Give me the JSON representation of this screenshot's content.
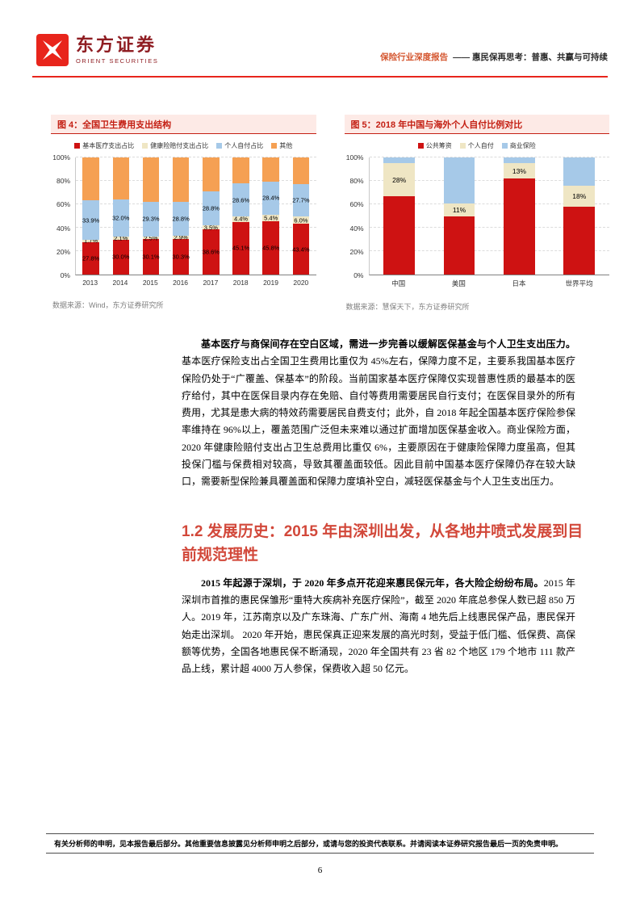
{
  "header": {
    "logo_cn": "东方证券",
    "logo_en": "ORIENT SECURITIES",
    "report_type": "保险行业深度报告",
    "report_title": "—— 惠民保再思考：普惠、共赢与可持续"
  },
  "colors": {
    "brand_red": "#E8251C",
    "figure_title_red": "#C42014",
    "figure_title_bg": "#FDEAE6",
    "section_heading_red": "#D2483A",
    "bar_red": "#CE1212",
    "bar_beige": "#EFE6C4",
    "bar_blue": "#A6C9E8",
    "bar_orange": "#F5A053"
  },
  "chart_data": [
    {
      "type": "bar",
      "subtype": "stacked",
      "title": "图 4：全国卫生费用支出结构",
      "categories": [
        "2013",
        "2014",
        "2015",
        "2016",
        "2017",
        "2018",
        "2019",
        "2020"
      ],
      "y_ticks": [
        "100%",
        "80%",
        "60%",
        "40%",
        "20%",
        "0%"
      ],
      "ylim": [
        0,
        100
      ],
      "grid": "dashed-horizontal",
      "legend_position": "top",
      "bar_width": "55%",
      "series": [
        {
          "name": "基本医疗支出占比",
          "color": "#CE1212",
          "values": [
            27.8,
            30.0,
            30.1,
            30.3,
            38.6,
            45.1,
            45.8,
            43.4
          ],
          "labels": [
            "27.8%",
            "30.0%",
            "30.1%",
            "30.3%",
            "38.6%",
            "45.1%",
            "45.8%",
            "43.4%"
          ]
        },
        {
          "name": "健康险赔付支出占比",
          "color": "#EFE6C4",
          "values": [
            1.7,
            2.1,
            2.5,
            2.9,
            3.5,
            4.4,
            5.4,
            6.0
          ],
          "labels": [
            "1.7%",
            "2.1%",
            "2.5%",
            "2.9%",
            "3.5%",
            "4.4%",
            "5.4%",
            "6.0%"
          ]
        },
        {
          "name": "个人自付占比",
          "color": "#A6C9E8",
          "values": [
            33.9,
            32.0,
            29.3,
            28.8,
            28.8,
            28.6,
            28.4,
            27.7
          ],
          "labels": [
            "33.9%",
            "32.0%",
            "29.3%",
            "28.8%",
            "28.8%",
            "28.6%",
            "28.4%",
            "27.7%"
          ]
        },
        {
          "name": "其他",
          "color": "#F5A053",
          "values": [
            36.6,
            35.9,
            38.1,
            38.0,
            29.1,
            21.9,
            20.4,
            22.9
          ],
          "labels": [
            null,
            null,
            null,
            null,
            null,
            null,
            null,
            null
          ]
        }
      ],
      "source": "数据来源：Wind，东方证券研究所"
    },
    {
      "type": "bar",
      "subtype": "stacked",
      "title": "图 5：2018 年中国与海外个人自付比例对比",
      "categories": [
        "中国",
        "美国",
        "日本",
        "世界平均"
      ],
      "y_ticks": [
        "100%",
        "80%",
        "60%",
        "40%",
        "20%",
        "0%"
      ],
      "ylim": [
        0,
        100
      ],
      "grid": "dashed-horizontal",
      "legend_position": "top",
      "bar_width": "52%",
      "series": [
        {
          "name": "公共筹资",
          "color": "#CE1212",
          "values": [
            67,
            50,
            82,
            58
          ],
          "labels": [
            null,
            null,
            null,
            null
          ]
        },
        {
          "name": "个人自付",
          "color": "#EFE6C4",
          "values": [
            28,
            11,
            13,
            18
          ],
          "labels": [
            "28%",
            "11%",
            "13%",
            "18%"
          ]
        },
        {
          "name": "商业保险",
          "color": "#A6C9E8",
          "values": [
            5,
            39,
            5,
            24
          ],
          "labels": [
            null,
            null,
            null,
            null
          ]
        }
      ],
      "source": "数据来源：慧保天下，东方证券研究所"
    }
  ],
  "body": {
    "para1_lead": "基本医疗与商保间存在空白区域，需进一步完善以缓解医保基金与个人卫生支出压力。",
    "para1_rest": "基本医疗保险支出占全国卫生费用比重仅为 45%左右，保障力度不足，主要系我国基本医疗保险仍处于“广覆盖、保基本”的阶段。当前国家基本医疗保障仅实现普惠性质的最基本的医疗给付，其中在医保目录内存在免赔、自付等费用需要居民自行支付；在医保目录外的所有费用，尤其是患大病的特效药需要居民自费支付；此外，自 2018 年起全国基本医疗保险参保率维持在 96%以上，覆盖范围广泛但未来难以通过扩面增加医保基金收入。商业保险方面，2020 年健康险赔付支出占卫生总费用比重仅 6%，主要原因在于健康险保障力度虽高，但其投保门槛与保费相对较高，导致其覆盖面较低。因此目前中国基本医疗保障仍存在较大缺口，需要新型保险兼具覆盖面和保障力度填补空白，减轻医保基金与个人卫生支出压力。",
    "section_heading": "1.2 发展历史：2015 年由深圳出发，从各地井喷式发展到目前规范理性",
    "para2_lead": "2015 年起源于深圳，于 2020 年多点开花迎来惠民保元年，各大险企纷纷布局。",
    "para2_rest": "2015 年深圳市首推的惠民保雏形“重特大疾病补充医疗保险”，截至 2020 年底总参保人数已超 850 万人。2019 年，江苏南京以及广东珠海、广东广州、海南 4 地先后上线惠民保产品，惠民保开始走出深圳。 2020 年开始，惠民保真正迎来发展的高光时刻，受益于低门槛、低保费、高保额等优势，全国各地惠民保不断涌现，2020 年全国共有 23 省 82 个地区 179 个地市 111 款产品上线，累计超 4000 万人参保，保费收入超 50 亿元。"
  },
  "footer": {
    "disclaimer": "有关分析师的申明，见本报告最后部分。其他重要信息披露见分析师申明之后部分，或请与您的投资代表联系。并请阅读本证券研究报告最后一页的免责申明。",
    "page_number": "6"
  }
}
